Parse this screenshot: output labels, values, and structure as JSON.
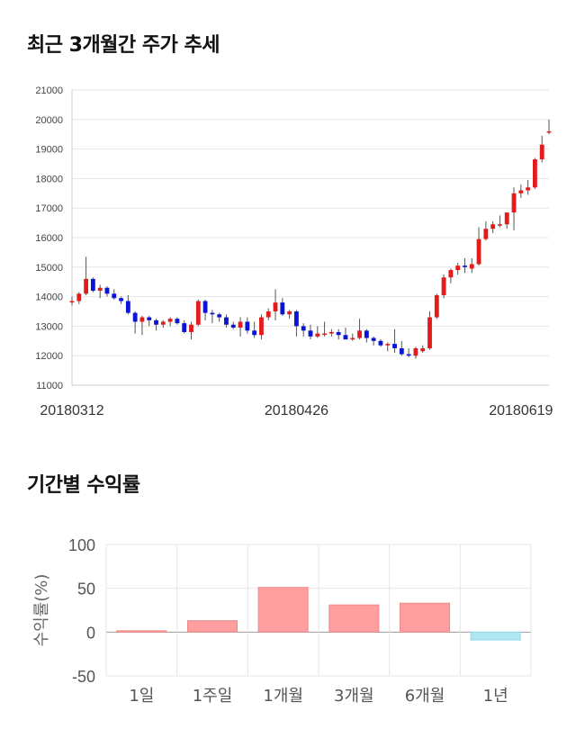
{
  "page": {
    "title_trend": "최근 3개월간 주가 추세",
    "title_returns": "기간별 수익률"
  },
  "chart_data": [
    {
      "type": "candlestick",
      "title": "최근 3개월간 주가 추세",
      "ylim": [
        11000,
        21000
      ],
      "yticks": [
        11000,
        12000,
        13000,
        14000,
        15000,
        16000,
        17000,
        18000,
        19000,
        20000,
        21000
      ],
      "xtick_labels": [
        {
          "index": 0,
          "label": "20180312"
        },
        {
          "index": 32,
          "label": "20180426"
        },
        {
          "index": 64,
          "label": "20180619"
        }
      ],
      "grid": true,
      "colors": {
        "up": "#e31b1b",
        "down": "#0a14d6",
        "wick": "#555555"
      },
      "candles": [
        [
          13850,
          14000,
          13700,
          13850
        ],
        [
          13850,
          14150,
          13750,
          14100
        ],
        [
          14100,
          15350,
          14050,
          14600
        ],
        [
          14600,
          14650,
          14150,
          14200
        ],
        [
          14200,
          14400,
          13950,
          14300
        ],
        [
          14300,
          14350,
          14000,
          14100
        ],
        [
          14100,
          14250,
          13900,
          13950
        ],
        [
          13950,
          14000,
          13750,
          13850
        ],
        [
          13850,
          14050,
          13400,
          13450
        ],
        [
          13450,
          13500,
          12750,
          13150
        ],
        [
          13150,
          13350,
          12700,
          13300
        ],
        [
          13300,
          13350,
          13000,
          13200
        ],
        [
          13200,
          13250,
          12850,
          13050
        ],
        [
          13050,
          13200,
          12950,
          13150
        ],
        [
          13150,
          13300,
          13000,
          13250
        ],
        [
          13250,
          13300,
          13050,
          13100
        ],
        [
          13100,
          13200,
          12750,
          12800
        ],
        [
          12800,
          13150,
          12550,
          13050
        ],
        [
          13050,
          13900,
          13000,
          13850
        ],
        [
          13850,
          13900,
          13200,
          13450
        ],
        [
          13450,
          13550,
          13100,
          13400
        ],
        [
          13400,
          13450,
          13150,
          13300
        ],
        [
          13300,
          13400,
          12950,
          13050
        ],
        [
          13050,
          13150,
          12900,
          12950
        ],
        [
          12950,
          13300,
          12650,
          13150
        ],
        [
          13150,
          13300,
          12750,
          12850
        ],
        [
          12850,
          13150,
          12600,
          12700
        ],
        [
          12700,
          13400,
          12550,
          13300
        ],
        [
          13300,
          13600,
          13200,
          13500
        ],
        [
          13500,
          14250,
          13200,
          13800
        ],
        [
          13800,
          13950,
          13350,
          13400
        ],
        [
          13400,
          13550,
          13250,
          13500
        ],
        [
          13500,
          13550,
          12650,
          13000
        ],
        [
          13000,
          13100,
          12650,
          12850
        ],
        [
          12850,
          13050,
          12550,
          12650
        ],
        [
          12650,
          13000,
          12600,
          12750
        ],
        [
          12750,
          13150,
          12650,
          12750
        ],
        [
          12750,
          12900,
          12650,
          12800
        ],
        [
          12800,
          12900,
          12550,
          12700
        ],
        [
          12700,
          12950,
          12650,
          12550
        ],
        [
          12550,
          12750,
          12500,
          12600
        ],
        [
          12600,
          13250,
          12550,
          12850
        ],
        [
          12850,
          12900,
          12450,
          12600
        ],
        [
          12600,
          12650,
          12350,
          12500
        ],
        [
          12500,
          12550,
          12300,
          12350
        ],
        [
          12350,
          12450,
          12150,
          12400
        ],
        [
          12400,
          12900,
          12100,
          12250
        ],
        [
          12250,
          12500,
          12000,
          12050
        ],
        [
          12050,
          12250,
          11950,
          12000
        ],
        [
          12000,
          12300,
          11900,
          12250
        ],
        [
          12150,
          12350,
          12100,
          12250
        ],
        [
          12250,
          13500,
          12200,
          13300
        ],
        [
          13300,
          14100,
          13250,
          14050
        ],
        [
          14050,
          14750,
          13950,
          14650
        ],
        [
          14650,
          14950,
          14450,
          14900
        ],
        [
          14900,
          15150,
          14750,
          15050
        ],
        [
          15050,
          15300,
          14800,
          15000
        ],
        [
          14950,
          15300,
          14800,
          15100
        ],
        [
          15100,
          16350,
          15050,
          15950
        ],
        [
          15950,
          16550,
          15900,
          16300
        ],
        [
          16300,
          16550,
          16150,
          16450
        ],
        [
          16450,
          16750,
          16350,
          16450
        ],
        [
          16450,
          16750,
          16300,
          16850
        ],
        [
          16850,
          17700,
          16250,
          17500
        ],
        [
          17500,
          17800,
          17350,
          17600
        ],
        [
          17600,
          17950,
          17450,
          17700
        ],
        [
          17700,
          18700,
          17650,
          18650
        ],
        [
          18650,
          19450,
          18550,
          19150
        ],
        [
          19600,
          20000,
          19500,
          19600
        ]
      ]
    },
    {
      "type": "bar",
      "title": "기간별 수익률",
      "ylabel": "수익률(%)",
      "ylim": [
        -50,
        100
      ],
      "yticks": [
        100,
        50,
        0,
        -50
      ],
      "grid": true,
      "categories": [
        "1일",
        "1주일",
        "1개월",
        "3개월",
        "6개월",
        "1년"
      ],
      "values": [
        1.5,
        13,
        51,
        31,
        33,
        -9
      ],
      "colors": {
        "positive": "#ff9e9e",
        "negative": "#aee6f2"
      }
    }
  ]
}
